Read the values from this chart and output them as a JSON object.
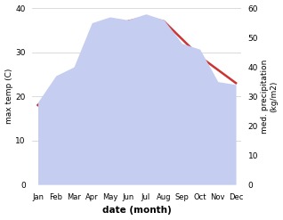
{
  "months": [
    "Jan",
    "Feb",
    "Mar",
    "Apr",
    "May",
    "Jun",
    "Jul",
    "Aug",
    "Sep",
    "Oct",
    "Nov",
    "Dec"
  ],
  "temp_max": [
    18,
    22,
    26,
    30,
    34,
    37,
    38,
    37,
    33,
    29,
    26,
    23
  ],
  "precip": [
    28,
    37,
    40,
    55,
    57,
    56,
    58,
    56,
    48,
    46,
    35,
    34
  ],
  "temp_ylim": [
    0,
    40
  ],
  "precip_ylim": [
    0,
    60
  ],
  "temp_color": "#cc3333",
  "precip_fill_color": "#c5cdf0",
  "xlabel": "date (month)",
  "ylabel_left": "max temp (C)",
  "ylabel_right": "med. precipitation\n(kg/m2)",
  "bg_color": "#ffffff",
  "temp_linewidth": 1.8,
  "yticks_left": [
    0,
    10,
    20,
    30,
    40
  ],
  "yticks_right": [
    0,
    10,
    20,
    30,
    40,
    50,
    60
  ]
}
